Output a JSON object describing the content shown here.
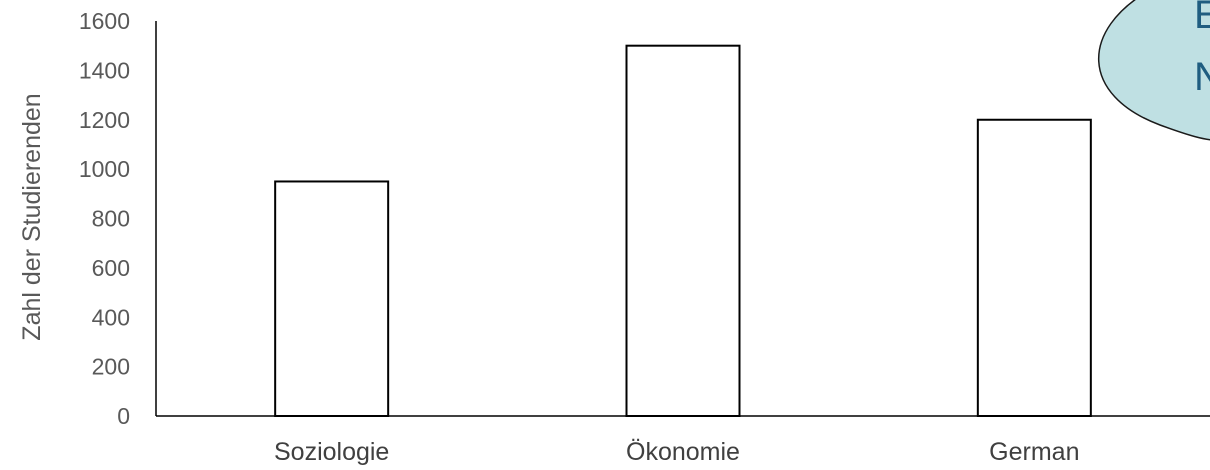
{
  "chart_data": {
    "type": "bar",
    "categories": [
      "Soziologie",
      "Ökonomie",
      "German"
    ],
    "values": [
      950,
      1500,
      1200
    ],
    "title": "",
    "xlabel": "",
    "ylabel": "Zahl der Studierenden",
    "ylim": [
      0,
      1600
    ],
    "yticks": [
      0,
      200,
      400,
      600,
      800,
      1000,
      1200,
      1400,
      1600
    ],
    "grid": false,
    "bar_fill": "#ffffff",
    "bar_stroke": "#000000"
  },
  "callout": {
    "lines": [
      "E",
      "N"
    ],
    "fill": "#bfe0e3",
    "stroke": "#1a1a1a"
  }
}
